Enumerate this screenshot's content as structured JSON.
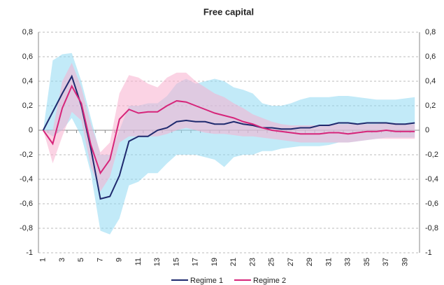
{
  "chart_data": {
    "type": "line",
    "title": "Free capital",
    "categories": [
      1,
      null,
      3,
      null,
      5,
      null,
      7,
      null,
      9,
      null,
      11,
      null,
      13,
      null,
      15,
      null,
      17,
      null,
      19,
      null,
      21,
      null,
      23,
      null,
      25,
      null,
      27,
      null,
      29,
      null,
      31,
      null,
      33,
      null,
      35,
      null,
      37,
      null,
      39,
      null
    ],
    "ylim": [
      -1,
      0.8
    ],
    "yticks": [
      {
        "value": -1,
        "label": "-1"
      },
      {
        "value": -0.8,
        "label": "-0,8"
      },
      {
        "value": -0.6,
        "label": "-0,6"
      },
      {
        "value": -0.4,
        "label": "-0,4"
      },
      {
        "value": -0.2,
        "label": "-0,2"
      },
      0,
      {
        "value": 0.2,
        "label": "0,2"
      },
      {
        "value": 0.4,
        "label": "0,4"
      },
      {
        "value": 0.6,
        "label": "0,6"
      },
      {
        "value": 0.8,
        "label": "0,8"
      }
    ],
    "grid": true,
    "series": [
      {
        "name": "Regime 1",
        "color": "#1f2a6e",
        "band_color": "#8fd8f3",
        "values": [
          0,
          0.15,
          0.3,
          0.44,
          0.2,
          -0.15,
          -0.56,
          -0.54,
          -0.37,
          -0.09,
          -0.05,
          -0.05,
          0.0,
          0.02,
          0.07,
          0.08,
          0.07,
          0.07,
          0.05,
          0.05,
          0.07,
          0.05,
          0.04,
          0.02,
          0.02,
          0.01,
          0.01,
          0.02,
          0.02,
          0.04,
          0.04,
          0.06,
          0.06,
          0.05,
          0.06,
          0.06,
          0.06,
          0.05,
          0.05,
          0.06
        ],
        "upper": [
          0,
          0.57,
          0.62,
          0.63,
          0.4,
          0.1,
          -0.2,
          -0.2,
          0.0,
          0.2,
          0.2,
          0.22,
          0.22,
          0.28,
          0.38,
          0.42,
          0.38,
          0.4,
          0.42,
          0.4,
          0.35,
          0.33,
          0.3,
          0.22,
          0.2,
          0.2,
          0.22,
          0.25,
          0.27,
          0.27,
          0.27,
          0.28,
          0.28,
          0.27,
          0.26,
          0.25,
          0.25,
          0.25,
          0.26,
          0.27
        ],
        "lower": [
          0,
          -0.05,
          0.0,
          0.1,
          -0.05,
          -0.35,
          -0.82,
          -0.85,
          -0.72,
          -0.45,
          -0.42,
          -0.35,
          -0.35,
          -0.27,
          -0.2,
          -0.2,
          -0.2,
          -0.22,
          -0.24,
          -0.3,
          -0.22,
          -0.2,
          -0.2,
          -0.17,
          -0.17,
          -0.15,
          -0.14,
          -0.13,
          -0.13,
          -0.13,
          -0.12,
          -0.1,
          -0.1,
          -0.09,
          -0.08,
          -0.07,
          -0.06,
          -0.06,
          -0.06,
          -0.06
        ]
      },
      {
        "name": "Regime 2",
        "color": "#d6257a",
        "band_color": "#f7aecd",
        "values": [
          0,
          -0.11,
          0.18,
          0.36,
          0.22,
          -0.12,
          -0.35,
          -0.24,
          0.09,
          0.17,
          0.14,
          0.15,
          0.15,
          0.2,
          0.24,
          0.23,
          0.2,
          0.17,
          0.14,
          0.12,
          0.1,
          0.07,
          0.05,
          0.02,
          0.0,
          -0.01,
          -0.02,
          -0.03,
          -0.03,
          -0.03,
          -0.02,
          -0.02,
          -0.03,
          -0.02,
          -0.01,
          -0.01,
          0.0,
          -0.01,
          -0.01,
          -0.01
        ],
        "upper": [
          0,
          0.0,
          0.4,
          0.55,
          0.35,
          0.05,
          -0.18,
          -0.1,
          0.3,
          0.45,
          0.43,
          0.38,
          0.35,
          0.43,
          0.47,
          0.47,
          0.4,
          0.35,
          0.3,
          0.27,
          0.22,
          0.18,
          0.13,
          0.1,
          0.07,
          0.05,
          0.04,
          0.04,
          0.04,
          0.04,
          0.05,
          0.05,
          0.05,
          0.05,
          0.05,
          0.05,
          0.06,
          0.06,
          0.05,
          0.05
        ],
        "lower": [
          0,
          -0.27,
          -0.05,
          0.15,
          0.08,
          -0.3,
          -0.5,
          -0.38,
          -0.1,
          -0.05,
          -0.05,
          -0.05,
          -0.05,
          -0.03,
          0.0,
          0.02,
          0.0,
          -0.02,
          -0.03,
          -0.03,
          -0.04,
          -0.05,
          -0.05,
          -0.06,
          -0.07,
          -0.08,
          -0.09,
          -0.1,
          -0.1,
          -0.1,
          -0.1,
          -0.1,
          -0.1,
          -0.09,
          -0.08,
          -0.07,
          -0.07,
          -0.07,
          -0.07,
          -0.07
        ]
      }
    ]
  }
}
